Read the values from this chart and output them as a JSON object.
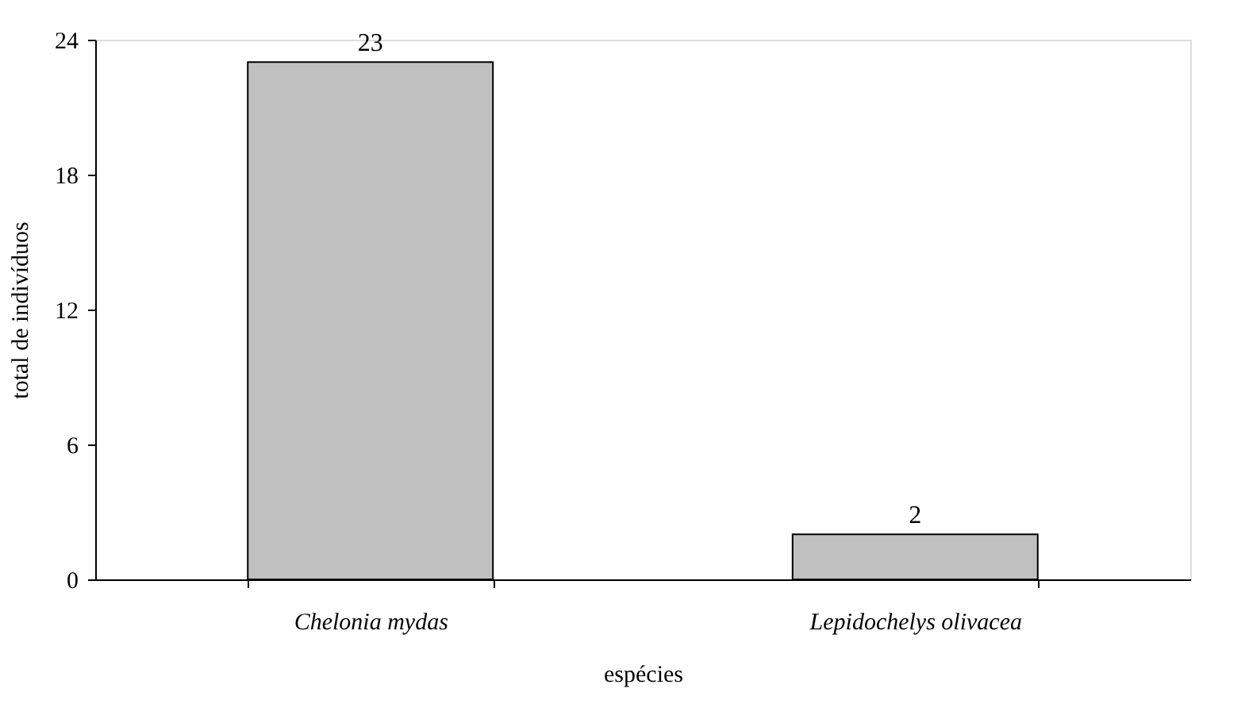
{
  "chart_data": {
    "type": "bar",
    "xlabel": "espécies",
    "ylabel": "total de indivíduos",
    "categories": [
      "Chelonia mydas",
      "Lepidochelys olivacea"
    ],
    "values": [
      23,
      2
    ],
    "color": "#c0c0c0",
    "ylim": [
      0,
      24
    ],
    "yticks": [
      0,
      6,
      12,
      18,
      24
    ],
    "grid": false,
    "data_labels": true
  }
}
